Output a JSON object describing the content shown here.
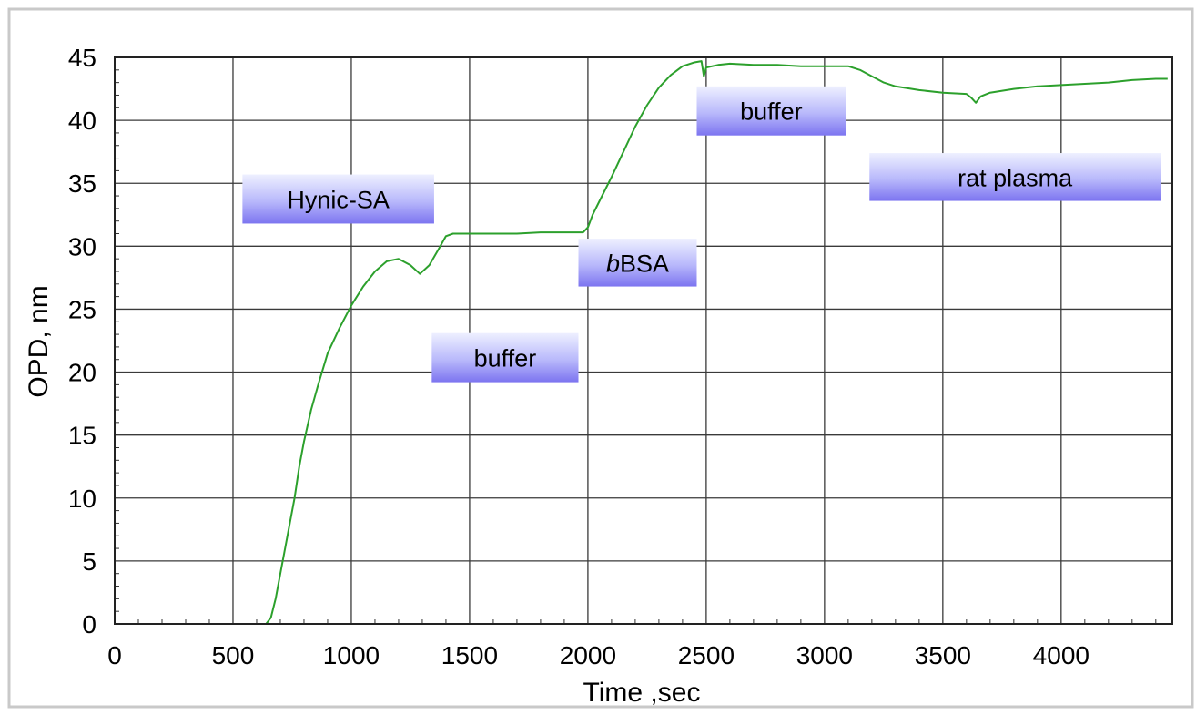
{
  "chart_data": {
    "type": "line",
    "title": "",
    "xlabel": "Time ,sec",
    "ylabel": "OPD, nm",
    "xlim": [
      0,
      4470
    ],
    "ylim": [
      0,
      45
    ],
    "x_ticks": [
      0,
      500,
      1000,
      1500,
      2000,
      2500,
      3000,
      3500,
      4000
    ],
    "y_ticks": [
      0,
      5,
      10,
      15,
      20,
      25,
      30,
      35,
      40,
      45
    ],
    "grid": true,
    "series": [
      {
        "color": "#2ca02c",
        "points": [
          [
            0,
            0.0
          ],
          [
            100,
            0.0
          ],
          [
            200,
            0.0
          ],
          [
            300,
            0.0
          ],
          [
            400,
            0.0
          ],
          [
            500,
            0.0
          ],
          [
            600,
            0.0
          ],
          [
            640,
            0.0
          ],
          [
            660,
            0.5
          ],
          [
            680,
            2.0
          ],
          [
            700,
            4.0
          ],
          [
            720,
            6.0
          ],
          [
            740,
            8.0
          ],
          [
            760,
            10.0
          ],
          [
            780,
            12.5
          ],
          [
            800,
            14.5
          ],
          [
            830,
            17.0
          ],
          [
            860,
            19.0
          ],
          [
            900,
            21.5
          ],
          [
            950,
            23.5
          ],
          [
            1000,
            25.3
          ],
          [
            1050,
            26.8
          ],
          [
            1100,
            28.0
          ],
          [
            1150,
            28.8
          ],
          [
            1200,
            29.0
          ],
          [
            1250,
            28.5
          ],
          [
            1290,
            27.8
          ],
          [
            1330,
            28.5
          ],
          [
            1370,
            29.8
          ],
          [
            1400,
            30.8
          ],
          [
            1430,
            31.0
          ],
          [
            1500,
            31.0
          ],
          [
            1600,
            31.0
          ],
          [
            1700,
            31.0
          ],
          [
            1800,
            31.1
          ],
          [
            1900,
            31.1
          ],
          [
            1980,
            31.1
          ],
          [
            2000,
            31.5
          ],
          [
            2020,
            32.5
          ],
          [
            2060,
            34.0
          ],
          [
            2100,
            35.5
          ],
          [
            2150,
            37.5
          ],
          [
            2200,
            39.5
          ],
          [
            2250,
            41.2
          ],
          [
            2300,
            42.6
          ],
          [
            2350,
            43.6
          ],
          [
            2400,
            44.3
          ],
          [
            2450,
            44.6
          ],
          [
            2480,
            44.7
          ],
          [
            2490,
            43.5
          ],
          [
            2500,
            44.2
          ],
          [
            2550,
            44.4
          ],
          [
            2600,
            44.5
          ],
          [
            2700,
            44.4
          ],
          [
            2800,
            44.4
          ],
          [
            2900,
            44.3
          ],
          [
            3000,
            44.3
          ],
          [
            3100,
            44.3
          ],
          [
            3150,
            44.0
          ],
          [
            3200,
            43.5
          ],
          [
            3250,
            43.0
          ],
          [
            3300,
            42.7
          ],
          [
            3400,
            42.4
          ],
          [
            3500,
            42.2
          ],
          [
            3600,
            42.1
          ],
          [
            3620,
            41.8
          ],
          [
            3640,
            41.4
          ],
          [
            3660,
            41.9
          ],
          [
            3700,
            42.2
          ],
          [
            3800,
            42.5
          ],
          [
            3900,
            42.7
          ],
          [
            4000,
            42.8
          ],
          [
            4100,
            42.9
          ],
          [
            4200,
            43.0
          ],
          [
            4300,
            43.2
          ],
          [
            4400,
            43.3
          ],
          [
            4450,
            43.3
          ]
        ]
      }
    ],
    "annotations": [
      {
        "text": "Hynic-SA",
        "italic_prefix": "",
        "x0": 540,
        "x1": 1350,
        "y0": 31.8,
        "y1": 35.7
      },
      {
        "text": "buffer",
        "italic_prefix": "",
        "x0": 1340,
        "x1": 1960,
        "y0": 19.2,
        "y1": 23.1
      },
      {
        "text": "BSA",
        "italic_prefix": "b",
        "x0": 1960,
        "x1": 2460,
        "y0": 26.8,
        "y1": 30.6
      },
      {
        "text": "buffer",
        "italic_prefix": "",
        "x0": 2460,
        "x1": 3090,
        "y0": 38.8,
        "y1": 42.7
      },
      {
        "text": "rat plasma",
        "italic_prefix": "",
        "x0": 3190,
        "x1": 4420,
        "y0": 33.6,
        "y1": 37.4
      }
    ]
  }
}
